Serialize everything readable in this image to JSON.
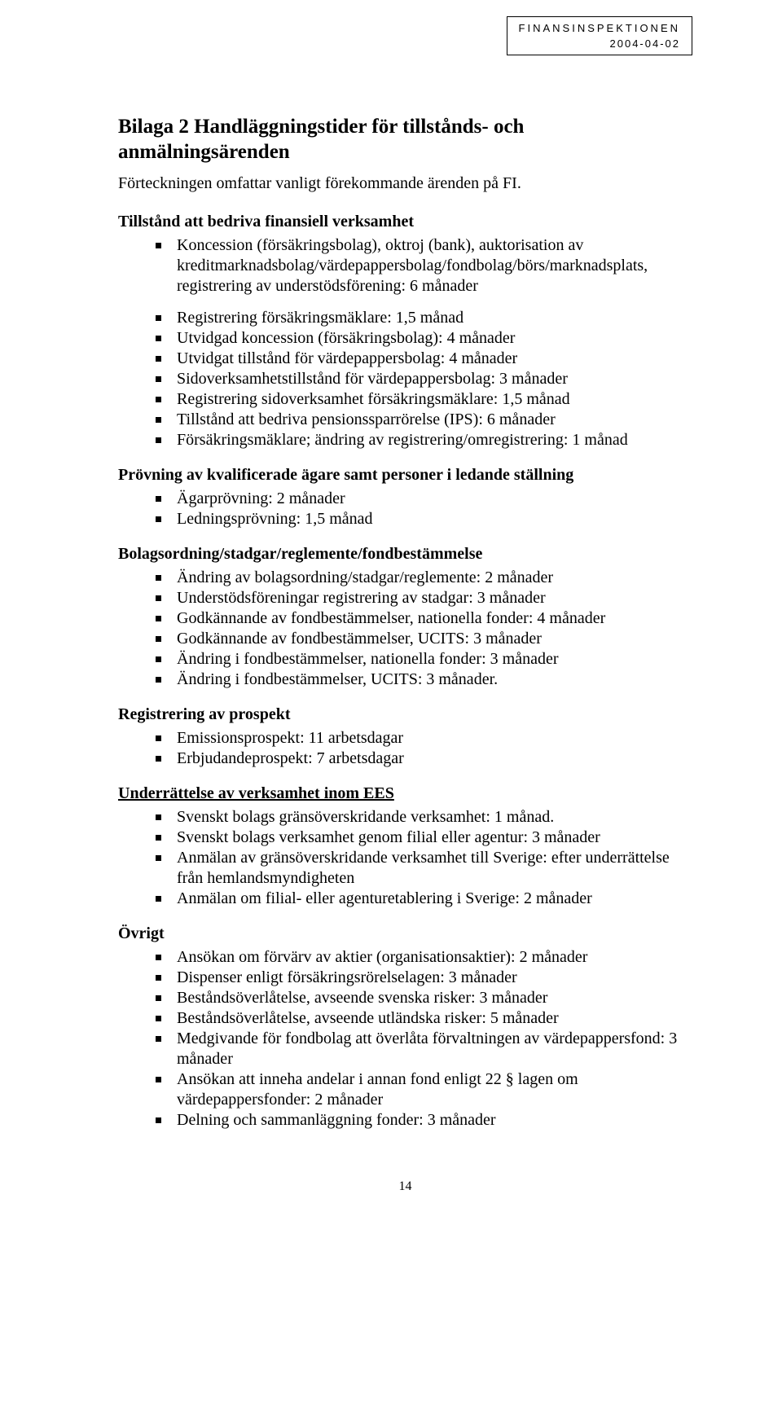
{
  "header": {
    "agency": "FINANSINSPEKTIONEN",
    "date": "2004-04-02"
  },
  "title_line1": "Bilaga 2  Handläggningstider för tillstånds- och",
  "title_line2": "anmälningsärenden",
  "intro": "Förteckningen omfattar vanligt förekommande ärenden på FI.",
  "s1": {
    "heading": "Tillstånd att bedriva finansiell verksamhet",
    "items": [
      "Koncession (försäkringsbolag), oktroj (bank), auktorisation av kreditmarknadsbolag/värdepappersbolag/fondbolag/börs/marknadsplats, registrering av understödsförening: 6 månader"
    ]
  },
  "s1b": {
    "items": [
      "Registrering försäkringsmäklare: 1,5 månad",
      "Utvidgad koncession (försäkringsbolag): 4 månader",
      "Utvidgat tillstånd för värdepappersbolag: 4 månader",
      "Sidoverksamhetstillstånd för värdepappersbolag: 3 månader",
      "Registrering sidoverksamhet försäkringsmäklare: 1,5 månad",
      "Tillstånd att bedriva pensionssparrörelse (IPS): 6 månader",
      "Försäkringsmäklare; ändring av registrering/omregistrering: 1 månad"
    ]
  },
  "s2": {
    "heading": "Prövning av kvalificerade ägare samt personer i ledande ställning",
    "items": [
      "Ägarprövning: 2 månader",
      "Ledningsprövning: 1,5 månad"
    ]
  },
  "s3": {
    "heading": "Bolagsordning/stadgar/reglemente/fondbestämmelse",
    "items": [
      "Ändring av bolagsordning/stadgar/reglemente: 2 månader",
      "Understödsföreningar registrering av stadgar: 3 månader",
      "Godkännande av fondbestämmelser, nationella fonder: 4 månader",
      "Godkännande av fondbestämmelser, UCITS: 3 månader",
      "Ändring i fondbestämmelser, nationella fonder: 3 månader",
      "Ändring i fondbestämmelser, UCITS: 3 månader."
    ]
  },
  "s4": {
    "heading": "Registrering av prospekt",
    "items": [
      "Emissionsprospekt: 11 arbetsdagar",
      "Erbjudandeprospekt: 7 arbetsdagar"
    ]
  },
  "s5": {
    "heading": "Underrättelse av verksamhet inom EES",
    "items": [
      "Svenskt bolags gränsöverskridande verksamhet: 1 månad.",
      "Svenskt bolags verksamhet genom filial eller agentur: 3 månader",
      "Anmälan av gränsöverskridande verksamhet till Sverige: efter underrättelse från hemlandsmyndigheten",
      "Anmälan om filial- eller agenturetablering i Sverige: 2 månader"
    ]
  },
  "s6": {
    "heading": "Övrigt",
    "items": [
      "Ansökan om förvärv av aktier (organisationsaktier): 2 månader",
      "Dispenser enligt försäkringsrörelselagen: 3 månader",
      "Beståndsöverlåtelse, avseende svenska risker: 3 månader",
      "Beståndsöverlåtelse, avseende utländska risker: 5 månader",
      "Medgivande för fondbolag att överlåta förvaltningen av värdepappersfond: 3 månader",
      "Ansökan att inneha andelar i annan fond enligt 22 § lagen om värdepappersfonder: 2 månader",
      "Delning och sammanläggning fonder: 3 månader"
    ]
  },
  "page_number": "14"
}
